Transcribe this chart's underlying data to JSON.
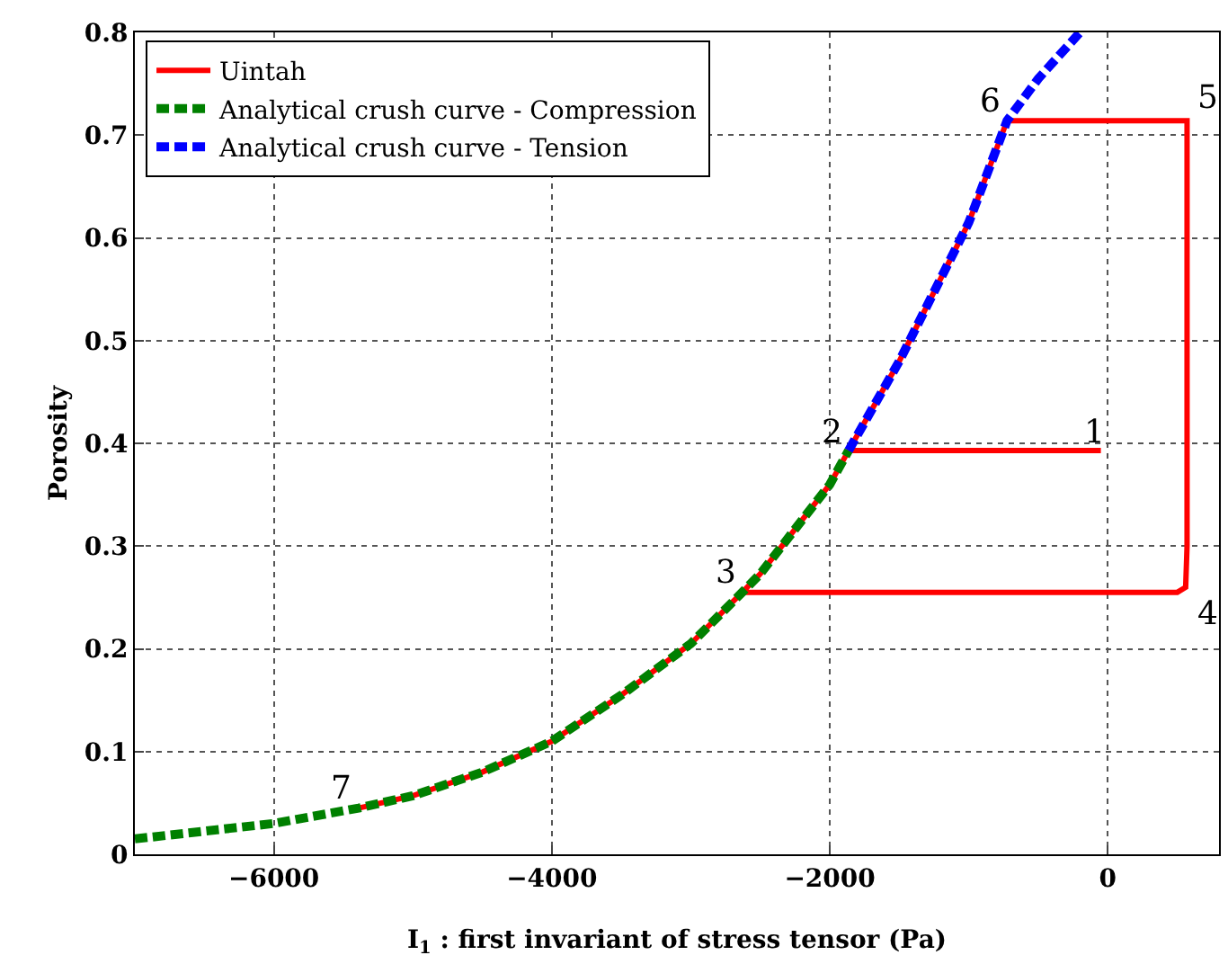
{
  "chart_data": {
    "type": "line",
    "xlabel": "I$_{1}$ : first invariant of stress tensor (Pa)",
    "ylabel": "Porosity",
    "xlim": [
      -7000,
      800
    ],
    "ylim": [
      0,
      0.8
    ],
    "xticks": [
      -6000,
      -4000,
      -2000,
      0
    ],
    "yticks": [
      0,
      0.1,
      0.2,
      0.3,
      0.4,
      0.5,
      0.6,
      0.7,
      0.8
    ],
    "grid": true,
    "legend": "top left",
    "marker": "none",
    "series": [
      {
        "name": "Uintah",
        "color": "#ff0000",
        "line_style": "solid",
        "x": [
          -50,
          -1865,
          -2000,
          -2500,
          -2630,
          500,
          560,
          570,
          570,
          -725,
          -1000,
          -1500,
          -1865,
          -2000,
          -2500,
          -2630,
          -3000,
          -3500,
          -4000,
          -4500,
          -5000,
          -5390
        ],
        "values": [
          0.393,
          0.393,
          0.36,
          0.273,
          0.255,
          0.255,
          0.26,
          0.3,
          0.714,
          0.714,
          0.615,
          0.48,
          0.393,
          0.36,
          0.273,
          0.255,
          0.205,
          0.155,
          0.11,
          0.08,
          0.057,
          0.045
        ]
      },
      {
        "name": "Analytical crush curve - Compression",
        "color": "#008000",
        "line_style": "dashed",
        "x": [
          -7000,
          -6000,
          -5390,
          -5000,
          -4500,
          -4000,
          -3500,
          -3000,
          -2630,
          -2500,
          -2000,
          -1865
        ],
        "values": [
          0.015,
          0.03,
          0.045,
          0.057,
          0.08,
          0.11,
          0.155,
          0.205,
          0.255,
          0.273,
          0.36,
          0.393
        ]
      },
      {
        "name": "Analytical crush curve - Tension",
        "color": "#0000ff",
        "line_style": "dashed",
        "x": [
          -1865,
          -1500,
          -1000,
          -725,
          -500,
          -200
        ],
        "values": [
          0.393,
          0.48,
          0.615,
          0.714,
          0.755,
          0.8
        ]
      }
    ],
    "annotations": [
      {
        "text": "1",
        "x": -50,
        "y": 0.393
      },
      {
        "text": "2",
        "x": -1865,
        "y": 0.393
      },
      {
        "text": "3",
        "x": -2630,
        "y": 0.255
      },
      {
        "text": "4",
        "x": 570,
        "y": 0.255
      },
      {
        "text": "5",
        "x": 570,
        "y": 0.714
      },
      {
        "text": "6",
        "x": -725,
        "y": 0.714
      },
      {
        "text": "7",
        "x": -5390,
        "y": 0.045
      }
    ]
  }
}
